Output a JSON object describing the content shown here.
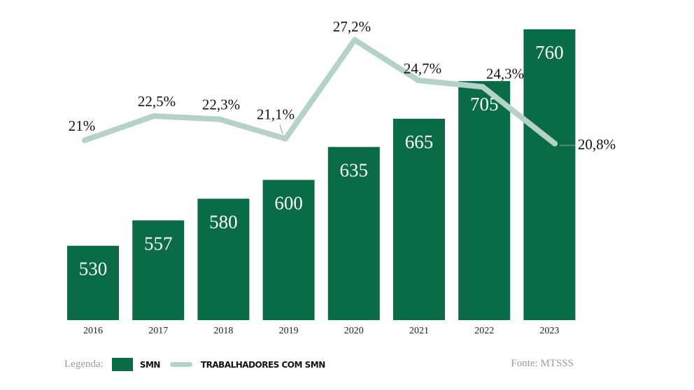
{
  "chart_data": {
    "type": "bar",
    "categories": [
      "2016",
      "2017",
      "2018",
      "2019",
      "2020",
      "2021",
      "2022",
      "2023"
    ],
    "series": [
      {
        "name": "SMN",
        "type": "bar",
        "values": [
          530,
          557,
          580,
          600,
          635,
          665,
          705,
          760
        ],
        "labels": [
          "530",
          "557",
          "580",
          "600",
          "635",
          "665",
          "705",
          "760"
        ]
      },
      {
        "name": "TRABALHADORES COM SMN",
        "type": "line",
        "values": [
          21,
          22.5,
          22.3,
          21.1,
          27.2,
          24.7,
          24.3,
          20.8
        ],
        "labels": [
          "21%",
          "22,5%",
          "22,3%",
          "21,1%",
          "27,2%",
          "24,7%",
          "24,3%",
          "20,8%"
        ]
      }
    ],
    "bar_ylim": [
      451,
      760
    ],
    "line_ylim": [
      9.9,
      27.85
    ],
    "grid": false,
    "legend_placement": "bottom-left",
    "colors": {
      "bar": "#0a6b47",
      "line": "#b4d3c6"
    }
  },
  "legend": {
    "label": "Legenda:",
    "bar_item": "SMN",
    "line_item": "TRABALHADORES COM SMN"
  },
  "source": "Fonte: MTSSS"
}
